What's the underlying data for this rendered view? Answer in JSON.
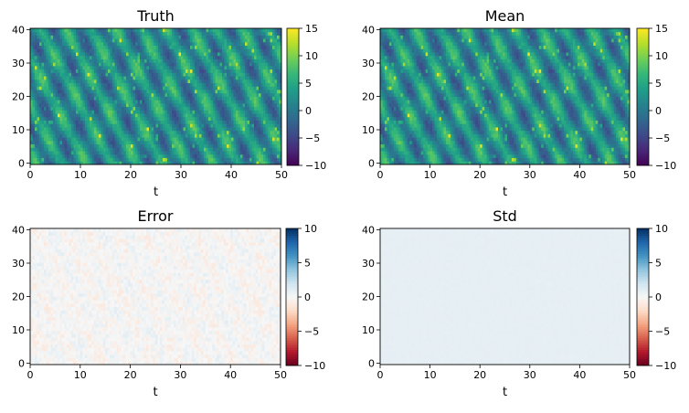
{
  "chart_data": [
    {
      "type": "heatmap",
      "title": "Truth",
      "xlabel": "t",
      "ylabel": "",
      "xlim": [
        0,
        50
      ],
      "ylim": [
        0,
        40
      ],
      "xticks": [
        "0",
        "10",
        "20",
        "30",
        "40",
        "50"
      ],
      "yticks": [
        "0",
        "10",
        "20",
        "30",
        "40"
      ],
      "colormap": "viridis",
      "colorbar": {
        "min": -10,
        "max": 15,
        "ticks": [
          "−10",
          "−5",
          "0",
          "5",
          "10",
          "15"
        ]
      },
      "pattern": "oscillating"
    },
    {
      "type": "heatmap",
      "title": "Mean",
      "xlabel": "t",
      "ylabel": "",
      "xlim": [
        0,
        50
      ],
      "ylim": [
        0,
        40
      ],
      "xticks": [
        "0",
        "10",
        "20",
        "30",
        "40",
        "50"
      ],
      "yticks": [
        "0",
        "10",
        "20",
        "30",
        "40"
      ],
      "colormap": "viridis",
      "colorbar": {
        "min": -10,
        "max": 15,
        "ticks": [
          "−10",
          "−5",
          "0",
          "5",
          "10",
          "15"
        ]
      },
      "pattern": "oscillating"
    },
    {
      "type": "heatmap",
      "title": "Error",
      "xlabel": "t",
      "ylabel": "",
      "xlim": [
        0,
        50
      ],
      "ylim": [
        0,
        40
      ],
      "xticks": [
        "0",
        "10",
        "20",
        "30",
        "40",
        "50"
      ],
      "yticks": [
        "0",
        "10",
        "20",
        "30",
        "40"
      ],
      "colormap": "RdBu",
      "colorbar": {
        "min": -10,
        "max": 10,
        "ticks": [
          "−10",
          "−5",
          "0",
          "5",
          "10"
        ]
      },
      "pattern": "noise"
    },
    {
      "type": "heatmap",
      "title": "Std",
      "xlabel": "t",
      "ylabel": "",
      "xlim": [
        0,
        50
      ],
      "ylim": [
        0,
        40
      ],
      "xticks": [
        "0",
        "10",
        "20",
        "30",
        "40",
        "50"
      ],
      "yticks": [
        "0",
        "10",
        "20",
        "30",
        "40"
      ],
      "colormap": "RdBu",
      "colorbar": {
        "min": -10,
        "max": 10,
        "ticks": [
          "−10",
          "−5",
          "0",
          "5",
          "10"
        ]
      },
      "pattern": "flat"
    }
  ]
}
